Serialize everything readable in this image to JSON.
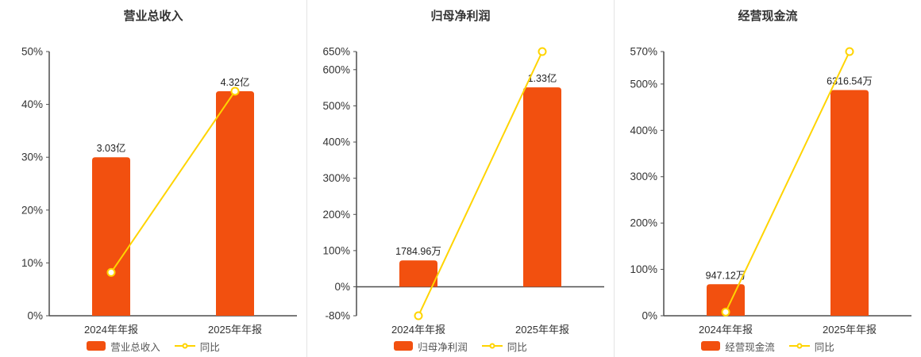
{
  "colors": {
    "bar": "#f2500f",
    "line": "#ffd400",
    "axis": "#4d4d4d",
    "tick_text": "#333333",
    "value_text": "#222222",
    "background": "#ffffff",
    "divider": "#e4e4e4"
  },
  "chart_data": [
    {
      "type": "bar+line",
      "title": "营业总收入",
      "categories": [
        "2024年年报",
        "2025年年报"
      ],
      "bar_series": {
        "name": "营业总收入",
        "labels": [
          "3.03亿",
          "4.32亿"
        ],
        "plot_pct": [
          30,
          42.5
        ]
      },
      "line_series": {
        "name": "同比",
        "plot_pct": [
          8.2,
          42.5
        ]
      },
      "axis": {
        "min": 0,
        "max": 50,
        "ticks": [
          50,
          40,
          30,
          20,
          10,
          0
        ],
        "unit": "%"
      },
      "legend_position": "bottom",
      "grid": false
    },
    {
      "type": "bar+line",
      "title": "归母净利润",
      "categories": [
        "2024年年报",
        "2025年年报"
      ],
      "bar_series": {
        "name": "归母净利润",
        "labels": [
          "1784.96万",
          "1.33亿"
        ],
        "plot_pct": [
          73,
          551
        ]
      },
      "line_series": {
        "name": "同比",
        "plot_pct": [
          -80,
          650
        ]
      },
      "axis": {
        "min": -80,
        "max": 650,
        "ticks": [
          650,
          600,
          500,
          400,
          300,
          200,
          100,
          0,
          -80
        ],
        "unit": "%"
      },
      "legend_position": "bottom",
      "grid": false
    },
    {
      "type": "bar+line",
      "title": "经营现金流",
      "categories": [
        "2024年年报",
        "2025年年报"
      ],
      "bar_series": {
        "name": "经营现金流",
        "labels": [
          "947.12万",
          "6316.54万"
        ],
        "plot_pct": [
          68,
          487
        ]
      },
      "line_series": {
        "name": "同比",
        "plot_pct": [
          8,
          570
        ]
      },
      "axis": {
        "min": 0,
        "max": 570,
        "ticks": [
          570,
          500,
          400,
          300,
          200,
          100,
          0
        ],
        "unit": "%"
      },
      "legend_position": "bottom",
      "grid": false
    }
  ]
}
